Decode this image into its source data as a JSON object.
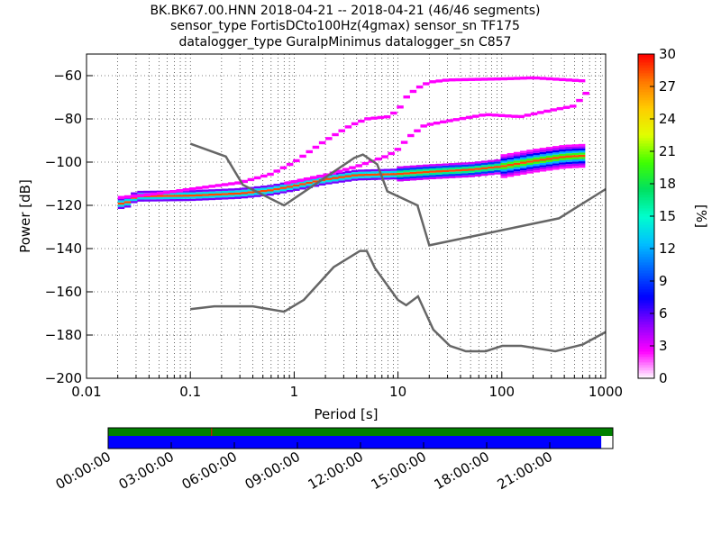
{
  "title_lines": [
    "BK.BK67.00.HNN   2018-04-21 -- 2018-04-21  (46/46 segments)",
    "sensor_type FortisDCto100Hz(4gmax) sensor_sn TF175",
    "datalogger_type GuralpMinimus datalogger_sn C857"
  ],
  "chart_data": {
    "type": "ppsd",
    "xlabel": "Period [s]",
    "ylabel": "Power [dB]",
    "xscale": "log",
    "xlim": [
      0.01,
      1000
    ],
    "ylim": [
      -200,
      -50
    ],
    "xticks": [
      {
        "value": 0.01,
        "label": "0.01"
      },
      {
        "value": 0.1,
        "label": "0.1"
      },
      {
        "value": 1,
        "label": "1"
      },
      {
        "value": 10,
        "label": "10"
      },
      {
        "value": 100,
        "label": "100"
      },
      {
        "value": 1000,
        "label": "1000"
      }
    ],
    "yticks": [
      -200,
      -180,
      -160,
      -140,
      -120,
      -100,
      -80,
      -60
    ],
    "grid": true,
    "noise_models": [
      {
        "id": "nhnm",
        "color": "#666666",
        "points": [
          [
            0.1,
            -91.5
          ],
          [
            0.22,
            -97.4
          ],
          [
            0.32,
            -110.5
          ],
          [
            0.8,
            -120.0
          ],
          [
            3.8,
            -98.0
          ],
          [
            4.6,
            -96.5
          ],
          [
            6.3,
            -101.0
          ],
          [
            7.9,
            -113.5
          ],
          [
            15.4,
            -120.0
          ],
          [
            20.0,
            -138.5
          ],
          [
            354.8,
            -126.0
          ],
          [
            1000,
            -112.5
          ]
        ]
      },
      {
        "id": "nlnm",
        "color": "#666666",
        "points": [
          [
            0.1,
            -168.0
          ],
          [
            0.17,
            -166.7
          ],
          [
            0.4,
            -166.7
          ],
          [
            0.8,
            -169.2
          ],
          [
            1.24,
            -163.7
          ],
          [
            2.4,
            -148.6
          ],
          [
            4.3,
            -141.1
          ],
          [
            5.0,
            -141.1
          ],
          [
            6.0,
            -149.0
          ],
          [
            10.0,
            -163.8
          ],
          [
            12.0,
            -166.2
          ],
          [
            15.6,
            -162.1
          ],
          [
            21.9,
            -177.5
          ],
          [
            31.6,
            -185.0
          ],
          [
            45.0,
            -187.5
          ],
          [
            70.0,
            -187.5
          ],
          [
            101.0,
            -185.0
          ],
          [
            154.0,
            -185.0
          ],
          [
            328.0,
            -187.5
          ],
          [
            600.0,
            -184.4
          ],
          [
            1000,
            -178.6
          ]
        ]
      }
    ],
    "psd_traces": [
      {
        "id": "main",
        "color": "#ff0000",
        "points": [
          [
            0.02,
            -119.5
          ],
          [
            0.025,
            -118.5
          ],
          [
            0.03,
            -115.8
          ],
          [
            0.1,
            -115.5
          ],
          [
            0.3,
            -114.5
          ],
          [
            0.6,
            -113.0
          ],
          [
            1.0,
            -111.0
          ],
          [
            2.0,
            -108.0
          ],
          [
            4.0,
            -106.0
          ],
          [
            10.0,
            -105.5
          ],
          [
            20.0,
            -104.5
          ],
          [
            50.0,
            -103.5
          ],
          [
            100.0,
            -102.0
          ],
          [
            200.0,
            -99.5
          ],
          [
            400.0,
            -97.5
          ],
          [
            650.0,
            -97.0
          ]
        ]
      },
      {
        "id": "upper_branch",
        "color": "#ff00ff",
        "points": [
          [
            0.02,
            -116.5
          ],
          [
            0.05,
            -114.5
          ],
          [
            0.1,
            -112.5
          ],
          [
            0.3,
            -109.5
          ],
          [
            0.6,
            -105.5
          ],
          [
            1.0,
            -100.0
          ],
          [
            2.0,
            -90.0
          ],
          [
            3.5,
            -83.0
          ],
          [
            5.0,
            -80.0
          ],
          [
            8.0,
            -79.0
          ],
          [
            10.0,
            -76.0
          ],
          [
            12.0,
            -70.0
          ],
          [
            15.0,
            -66.0
          ],
          [
            20.0,
            -63.0
          ],
          [
            30.0,
            -62.0
          ],
          [
            100.0,
            -61.5
          ],
          [
            200.0,
            -61.0
          ],
          [
            650.0,
            -62.5
          ]
        ]
      },
      {
        "id": "second_branch",
        "color": "#ff00ff",
        "points": [
          [
            0.8,
            -110.0
          ],
          [
            2.0,
            -106.0
          ],
          [
            4.0,
            -102.0
          ],
          [
            8.0,
            -97.0
          ],
          [
            10.0,
            -94.0
          ],
          [
            13.0,
            -88.0
          ],
          [
            18.0,
            -83.0
          ],
          [
            30.0,
            -81.0
          ],
          [
            70.0,
            -78.0
          ],
          [
            150.0,
            -79.0
          ],
          [
            300.0,
            -76.0
          ],
          [
            500.0,
            -74.0
          ],
          [
            650.0,
            -68.0
          ]
        ]
      }
    ],
    "colorbar": {
      "label": "[%]",
      "min": 0,
      "max": 30,
      "ticks": [
        0,
        3,
        6,
        9,
        12,
        15,
        18,
        21,
        24,
        27,
        30
      ],
      "colormap": [
        "#ffffff",
        "#ff00ff",
        "#8a00ff",
        "#0000ff",
        "#0060ff",
        "#00c0ff",
        "#00ffcc",
        "#00e060",
        "#40ff00",
        "#e0ff00",
        "#ffcc00",
        "#ff7700",
        "#ff0000"
      ]
    },
    "timeline": {
      "ticks": [
        "00:00:00",
        "03:00:00",
        "06:00:00",
        "09:00:00",
        "12:00:00",
        "15:00:00",
        "18:00:00",
        "21:00:00"
      ],
      "coverage_top": {
        "start": 0.0,
        "end": 1.0,
        "color": "#008000"
      },
      "coverage_bottom": {
        "start": 0.0,
        "end": 0.977,
        "color": "#0000ff"
      },
      "marker_fraction": 0.205
    }
  }
}
